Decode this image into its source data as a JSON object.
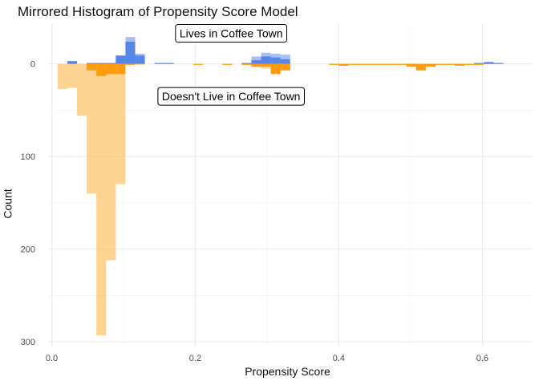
{
  "chart_data": {
    "type": "bar",
    "title": "Mirrored Histogram of Propensity Score Model",
    "xlabel": "Propensity Score",
    "ylabel": "Count",
    "xlim": [
      -0.005,
      0.67
    ],
    "ylim": [
      -43,
      305
    ],
    "x_ticks": [
      "0.0",
      "0.2",
      "0.4",
      "0.6"
    ],
    "y_ticks": [
      "0",
      "100",
      "200",
      "300"
    ],
    "y_tick_values": [
      0,
      100,
      200,
      300
    ],
    "x_tick_values": [
      0.0,
      0.2,
      0.4,
      0.6
    ],
    "bin_width": 0.0135,
    "grid": true,
    "annotations": [
      {
        "text": "Lives in Coffee Town",
        "x": 0.25,
        "y": -33
      },
      {
        "text": "Doesn't Live in Coffee Town",
        "x": 0.25,
        "y": 35
      }
    ],
    "series": [
      {
        "group": "treated-all",
        "color": "#4f7fe8",
        "opacity": 0.5,
        "bins": [
          {
            "x": 0.0285,
            "count": 3
          },
          {
            "x": 0.0555,
            "count": 1
          },
          {
            "x": 0.069,
            "count": 1
          },
          {
            "x": 0.0825,
            "count": 1
          },
          {
            "x": 0.096,
            "count": 9
          },
          {
            "x": 0.1095,
            "count": 29
          },
          {
            "x": 0.123,
            "count": 11
          },
          {
            "x": 0.15,
            "count": 1
          },
          {
            "x": 0.1635,
            "count": 1
          },
          {
            "x": 0.2715,
            "count": 1
          },
          {
            "x": 0.285,
            "count": 8
          },
          {
            "x": 0.2985,
            "count": 12
          },
          {
            "x": 0.312,
            "count": 11
          },
          {
            "x": 0.3255,
            "count": 10
          },
          {
            "x": 0.5955,
            "count": 1
          },
          {
            "x": 0.609,
            "count": 2
          },
          {
            "x": 0.6225,
            "count": 1
          }
        ]
      },
      {
        "group": "treated-matched",
        "color": "#4f7fe8",
        "opacity": 0.9,
        "bins": [
          {
            "x": 0.0285,
            "count": 3
          },
          {
            "x": 0.0555,
            "count": 1
          },
          {
            "x": 0.069,
            "count": 1
          },
          {
            "x": 0.0825,
            "count": 1
          },
          {
            "x": 0.096,
            "count": 9
          },
          {
            "x": 0.1095,
            "count": 24
          },
          {
            "x": 0.123,
            "count": 9
          },
          {
            "x": 0.15,
            "count": 1
          },
          {
            "x": 0.1635,
            "count": 1
          },
          {
            "x": 0.2715,
            "count": 1
          },
          {
            "x": 0.285,
            "count": 4
          },
          {
            "x": 0.2985,
            "count": 8
          },
          {
            "x": 0.312,
            "count": 7
          },
          {
            "x": 0.3255,
            "count": 5
          },
          {
            "x": 0.5955,
            "count": 1
          },
          {
            "x": 0.609,
            "count": 2
          },
          {
            "x": 0.6225,
            "count": 1
          }
        ]
      },
      {
        "group": "control-all",
        "color": "#ffa726",
        "opacity": 0.5,
        "bins": [
          {
            "x": 0.015,
            "count": 27
          },
          {
            "x": 0.0285,
            "count": 26
          },
          {
            "x": 0.042,
            "count": 56
          },
          {
            "x": 0.0555,
            "count": 140
          },
          {
            "x": 0.069,
            "count": 293
          },
          {
            "x": 0.0825,
            "count": 212
          },
          {
            "x": 0.096,
            "count": 130
          },
          {
            "x": 0.1095,
            "count": 1
          },
          {
            "x": 0.123,
            "count": 1
          },
          {
            "x": 0.204,
            "count": 1
          },
          {
            "x": 0.2445,
            "count": 1
          },
          {
            "x": 0.2715,
            "count": 1
          },
          {
            "x": 0.285,
            "count": 3
          },
          {
            "x": 0.2985,
            "count": 5
          },
          {
            "x": 0.312,
            "count": 11
          },
          {
            "x": 0.3255,
            "count": 7
          },
          {
            "x": 0.393,
            "count": 1
          },
          {
            "x": 0.4065,
            "count": 2
          },
          {
            "x": 0.42,
            "count": 1
          },
          {
            "x": 0.4335,
            "count": 1
          },
          {
            "x": 0.447,
            "count": 1
          },
          {
            "x": 0.4605,
            "count": 1
          },
          {
            "x": 0.474,
            "count": 1
          },
          {
            "x": 0.4875,
            "count": 1
          },
          {
            "x": 0.501,
            "count": 3
          },
          {
            "x": 0.5145,
            "count": 7
          },
          {
            "x": 0.528,
            "count": 3
          },
          {
            "x": 0.5415,
            "count": 1
          },
          {
            "x": 0.555,
            "count": 1
          },
          {
            "x": 0.5685,
            "count": 2
          },
          {
            "x": 0.582,
            "count": 1
          },
          {
            "x": 0.5955,
            "count": 1
          }
        ]
      },
      {
        "group": "control-matched",
        "color": "#ff9500",
        "opacity": 0.9,
        "bins": [
          {
            "x": 0.0555,
            "count": 7
          },
          {
            "x": 0.069,
            "count": 13
          },
          {
            "x": 0.0825,
            "count": 11
          },
          {
            "x": 0.096,
            "count": 11
          },
          {
            "x": 0.1095,
            "count": 1
          },
          {
            "x": 0.204,
            "count": 1
          },
          {
            "x": 0.2445,
            "count": 1
          },
          {
            "x": 0.2715,
            "count": 1
          },
          {
            "x": 0.285,
            "count": 3
          },
          {
            "x": 0.2985,
            "count": 3
          },
          {
            "x": 0.312,
            "count": 11
          },
          {
            "x": 0.3255,
            "count": 7
          },
          {
            "x": 0.393,
            "count": 1
          },
          {
            "x": 0.4065,
            "count": 2
          },
          {
            "x": 0.42,
            "count": 1
          },
          {
            "x": 0.4335,
            "count": 1
          },
          {
            "x": 0.447,
            "count": 1
          },
          {
            "x": 0.4605,
            "count": 1
          },
          {
            "x": 0.474,
            "count": 1
          },
          {
            "x": 0.4875,
            "count": 1
          },
          {
            "x": 0.501,
            "count": 3
          },
          {
            "x": 0.5145,
            "count": 7
          },
          {
            "x": 0.528,
            "count": 3
          },
          {
            "x": 0.5415,
            "count": 1
          },
          {
            "x": 0.555,
            "count": 1
          },
          {
            "x": 0.5685,
            "count": 2
          },
          {
            "x": 0.582,
            "count": 1
          },
          {
            "x": 0.5955,
            "count": 1
          }
        ]
      }
    ]
  }
}
